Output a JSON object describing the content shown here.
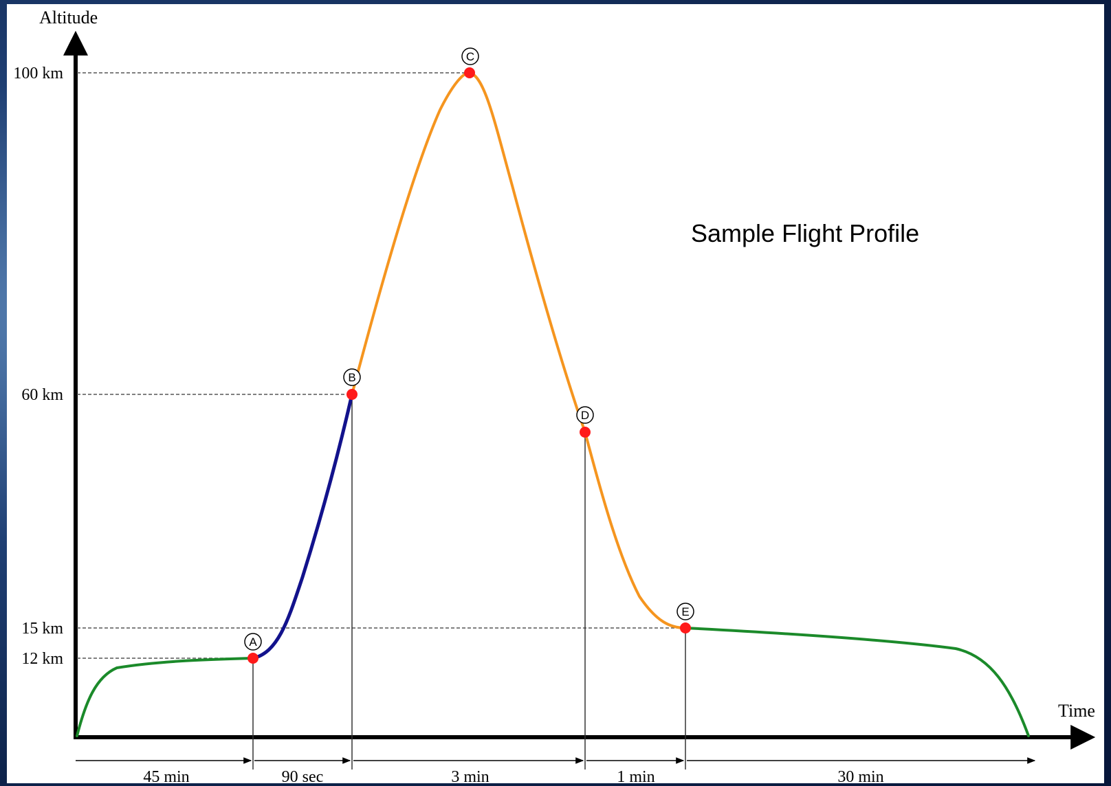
{
  "title": "Sample Flight Profile",
  "axes": {
    "y_label": "Altitude",
    "x_label": "Time",
    "y_ticks": [
      {
        "label": "100 km",
        "value": 100
      },
      {
        "label": "60 km",
        "value": 60
      },
      {
        "label": "15 km",
        "value": 15
      },
      {
        "label": "12 km",
        "value": 12
      }
    ]
  },
  "points": [
    {
      "id": "A",
      "label": "A"
    },
    {
      "id": "B",
      "label": "B"
    },
    {
      "id": "C",
      "label": "C"
    },
    {
      "id": "D",
      "label": "D"
    },
    {
      "id": "E",
      "label": "E"
    }
  ],
  "durations": [
    {
      "label": "45 min"
    },
    {
      "label": "90 sec"
    },
    {
      "label": "3 min"
    },
    {
      "label": "1 min"
    },
    {
      "label": "30 min"
    }
  ],
  "colors": {
    "cruise": "#1b8a2a",
    "boost": "#12128c",
    "ballistic": "#f5951f",
    "marker": "#ff1a1a"
  }
}
